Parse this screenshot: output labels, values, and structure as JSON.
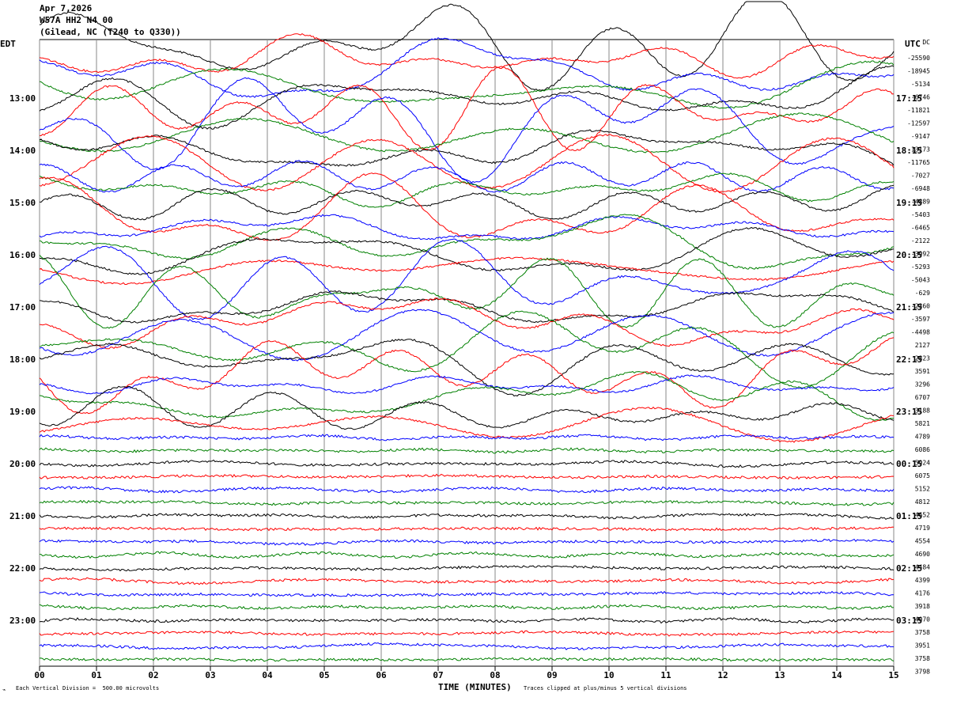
{
  "header": {
    "line1": "Apr 7,2026",
    "line2": "W57A HH2 N4 00",
    "line3": "(Gilead, NC (T240 to Q330))"
  },
  "left_axis_label": "EDT",
  "right_axis_label": "UTC",
  "footer": {
    "scale_note": "Each Vertical Division =  500.00 microvolts",
    "clip_note": "Traces clipped at plus/minus 5 vertical divisions",
    "corner_mark": "⌁"
  },
  "chart_data": {
    "type": "line",
    "title": "",
    "xlabel": "TIME (MINUTES)",
    "ylabel": "",
    "xlim": [
      0,
      15
    ],
    "x_ticks": [
      "00",
      "01",
      "02",
      "03",
      "04",
      "05",
      "06",
      "07",
      "08",
      "09",
      "10",
      "11",
      "12",
      "13",
      "14",
      "15"
    ],
    "left_time_labels": [
      "13:00",
      "14:00",
      "15:00",
      "16:00",
      "17:00",
      "18:00",
      "19:00",
      "20:00",
      "21:00",
      "22:00",
      "23:00"
    ],
    "right_time_labels": [
      "17:15",
      "18:15",
      "19:15",
      "20:15",
      "21:15",
      "22:15",
      "23:15",
      "00:15",
      "01:15",
      "02:15",
      "03:15"
    ],
    "trace_offsets": [
      "DC",
      "-25590",
      "-18945",
      "-5134",
      "-6746",
      "-11821",
      "-12597",
      "-9147",
      "-13173",
      "-11765",
      "-7027",
      "-6948",
      "-4889",
      "-5403",
      "-6465",
      "-2122",
      "-3992",
      "-5293",
      "-5043",
      "-629",
      "-2360",
      "-3597",
      "-4498",
      "2127",
      "2823",
      "3591",
      "3296",
      "6707",
      "3188",
      "5821",
      "4789",
      "6086",
      "5924",
      "6075",
      "5152",
      "4812",
      "4652",
      "4719",
      "4554",
      "4690",
      "4484",
      "4399",
      "4176",
      "3918",
      "4070",
      "3758",
      "3951",
      "3758",
      "3798"
    ],
    "trace_colors": [
      "#000000",
      "#ff0000",
      "#0000ff",
      "#008000"
    ],
    "trace_spacing_minutes_per_row": 15,
    "clip_divisions": 5,
    "units_per_division_microvolts": 500.0,
    "grid": true
  }
}
